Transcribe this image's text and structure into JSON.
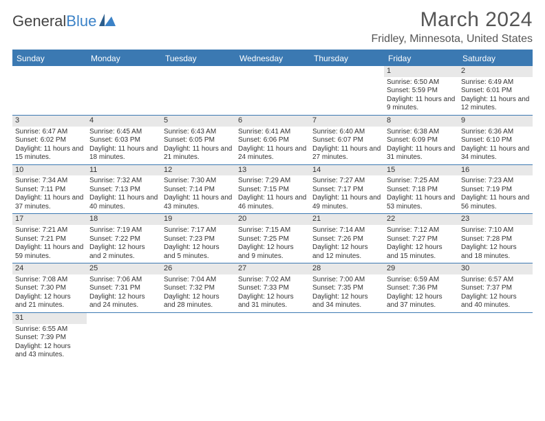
{
  "logo": {
    "text1": "General",
    "text2": "Blue"
  },
  "title": "March 2024",
  "location": "Fridley, Minnesota, United States",
  "header_bg": "#3b79b2",
  "days_of_week": [
    "Sunday",
    "Monday",
    "Tuesday",
    "Wednesday",
    "Thursday",
    "Friday",
    "Saturday"
  ],
  "weeks": [
    [
      null,
      null,
      null,
      null,
      null,
      {
        "n": "1",
        "sr": "6:50 AM",
        "ss": "5:59 PM",
        "dl": "11 hours and 9 minutes."
      },
      {
        "n": "2",
        "sr": "6:49 AM",
        "ss": "6:01 PM",
        "dl": "11 hours and 12 minutes."
      }
    ],
    [
      {
        "n": "3",
        "sr": "6:47 AM",
        "ss": "6:02 PM",
        "dl": "11 hours and 15 minutes."
      },
      {
        "n": "4",
        "sr": "6:45 AM",
        "ss": "6:03 PM",
        "dl": "11 hours and 18 minutes."
      },
      {
        "n": "5",
        "sr": "6:43 AM",
        "ss": "6:05 PM",
        "dl": "11 hours and 21 minutes."
      },
      {
        "n": "6",
        "sr": "6:41 AM",
        "ss": "6:06 PM",
        "dl": "11 hours and 24 minutes."
      },
      {
        "n": "7",
        "sr": "6:40 AM",
        "ss": "6:07 PM",
        "dl": "11 hours and 27 minutes."
      },
      {
        "n": "8",
        "sr": "6:38 AM",
        "ss": "6:09 PM",
        "dl": "11 hours and 31 minutes."
      },
      {
        "n": "9",
        "sr": "6:36 AM",
        "ss": "6:10 PM",
        "dl": "11 hours and 34 minutes."
      }
    ],
    [
      {
        "n": "10",
        "sr": "7:34 AM",
        "ss": "7:11 PM",
        "dl": "11 hours and 37 minutes."
      },
      {
        "n": "11",
        "sr": "7:32 AM",
        "ss": "7:13 PM",
        "dl": "11 hours and 40 minutes."
      },
      {
        "n": "12",
        "sr": "7:30 AM",
        "ss": "7:14 PM",
        "dl": "11 hours and 43 minutes."
      },
      {
        "n": "13",
        "sr": "7:29 AM",
        "ss": "7:15 PM",
        "dl": "11 hours and 46 minutes."
      },
      {
        "n": "14",
        "sr": "7:27 AM",
        "ss": "7:17 PM",
        "dl": "11 hours and 49 minutes."
      },
      {
        "n": "15",
        "sr": "7:25 AM",
        "ss": "7:18 PM",
        "dl": "11 hours and 53 minutes."
      },
      {
        "n": "16",
        "sr": "7:23 AM",
        "ss": "7:19 PM",
        "dl": "11 hours and 56 minutes."
      }
    ],
    [
      {
        "n": "17",
        "sr": "7:21 AM",
        "ss": "7:21 PM",
        "dl": "11 hours and 59 minutes."
      },
      {
        "n": "18",
        "sr": "7:19 AM",
        "ss": "7:22 PM",
        "dl": "12 hours and 2 minutes."
      },
      {
        "n": "19",
        "sr": "7:17 AM",
        "ss": "7:23 PM",
        "dl": "12 hours and 5 minutes."
      },
      {
        "n": "20",
        "sr": "7:15 AM",
        "ss": "7:25 PM",
        "dl": "12 hours and 9 minutes."
      },
      {
        "n": "21",
        "sr": "7:14 AM",
        "ss": "7:26 PM",
        "dl": "12 hours and 12 minutes."
      },
      {
        "n": "22",
        "sr": "7:12 AM",
        "ss": "7:27 PM",
        "dl": "12 hours and 15 minutes."
      },
      {
        "n": "23",
        "sr": "7:10 AM",
        "ss": "7:28 PM",
        "dl": "12 hours and 18 minutes."
      }
    ],
    [
      {
        "n": "24",
        "sr": "7:08 AM",
        "ss": "7:30 PM",
        "dl": "12 hours and 21 minutes."
      },
      {
        "n": "25",
        "sr": "7:06 AM",
        "ss": "7:31 PM",
        "dl": "12 hours and 24 minutes."
      },
      {
        "n": "26",
        "sr": "7:04 AM",
        "ss": "7:32 PM",
        "dl": "12 hours and 28 minutes."
      },
      {
        "n": "27",
        "sr": "7:02 AM",
        "ss": "7:33 PM",
        "dl": "12 hours and 31 minutes."
      },
      {
        "n": "28",
        "sr": "7:00 AM",
        "ss": "7:35 PM",
        "dl": "12 hours and 34 minutes."
      },
      {
        "n": "29",
        "sr": "6:59 AM",
        "ss": "7:36 PM",
        "dl": "12 hours and 37 minutes."
      },
      {
        "n": "30",
        "sr": "6:57 AM",
        "ss": "7:37 PM",
        "dl": "12 hours and 40 minutes."
      }
    ],
    [
      {
        "n": "31",
        "sr": "6:55 AM",
        "ss": "7:39 PM",
        "dl": "12 hours and 43 minutes."
      },
      null,
      null,
      null,
      null,
      null,
      null
    ]
  ],
  "labels": {
    "sunrise": "Sunrise:",
    "sunset": "Sunset:",
    "daylight": "Daylight:"
  }
}
